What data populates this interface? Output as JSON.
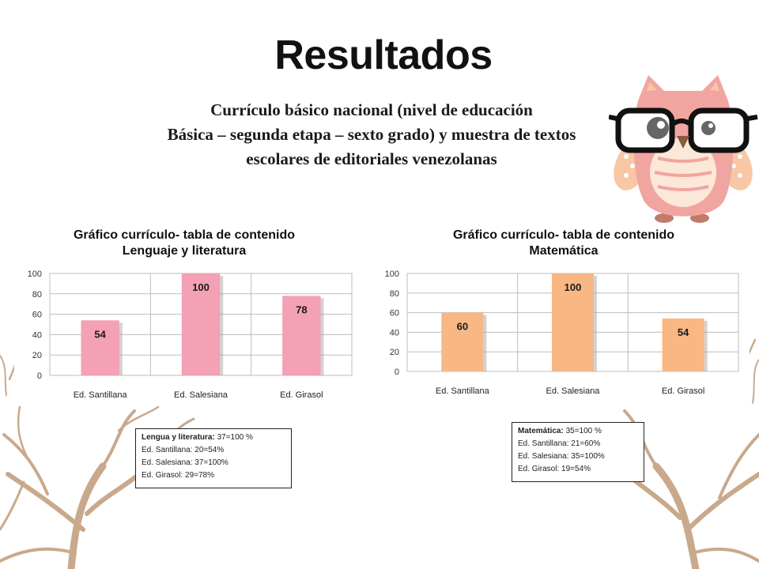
{
  "slide": {
    "title": "Resultados",
    "subtitle_lines": [
      "Currículo básico nacional (nivel de educación",
      "Básica – segunda etapa – sexto grado) y muestra de textos",
      "escolares de editoriales venezolanas"
    ]
  },
  "chart_data": [
    {
      "type": "bar",
      "title_lines": [
        "Gráfico currículo- tabla de contenido",
        "Lenguaje y literatura"
      ],
      "categories": [
        "Ed. Santillana",
        "Ed. Salesiana",
        "Ed. Girasol"
      ],
      "values": [
        54,
        100,
        78
      ],
      "data_labels": [
        "54",
        "100",
        "78"
      ],
      "ylim": [
        0,
        100
      ],
      "yticks": [
        0,
        20,
        40,
        60,
        80,
        100
      ],
      "grid": true,
      "legend": "none",
      "bar_color": "#f4a0b5"
    },
    {
      "type": "bar",
      "title_lines": [
        "Gráfico currículo- tabla de contenido",
        "Matemática"
      ],
      "categories": [
        "Ed. Santillana",
        "Ed. Salesiana",
        "Ed. Girasol"
      ],
      "values": [
        60,
        100,
        54
      ],
      "data_labels": [
        "60",
        "100",
        "54"
      ],
      "ylim": [
        0,
        100
      ],
      "yticks": [
        0,
        20,
        40,
        60,
        80,
        100
      ],
      "grid": true,
      "legend": "none",
      "bar_color": "#f9b784"
    }
  ],
  "notes": {
    "left": {
      "heading": "Lengua y literatura:",
      "heading_value": " 37=100 %",
      "lines": [
        "Ed. Santillana:  20=54%",
        "Ed. Salesiana: 37=100%",
        "Ed. Girasol: 29=78%"
      ]
    },
    "right": {
      "heading": "Matemática:",
      "heading_value": " 35=100 %",
      "lines": [
        "Ed. Santillana:  21=60%",
        "Ed. Salesiana: 35=100%",
        "Ed. Girasol: 19=54%"
      ]
    }
  },
  "decor": {
    "owl_icon": "owl-with-glasses",
    "tree_icon": "bare-tree-branches",
    "colors": {
      "owl_body": "#f1a5a0",
      "owl_belly": "#fbe8d8",
      "tree": "#c9a98c"
    }
  }
}
